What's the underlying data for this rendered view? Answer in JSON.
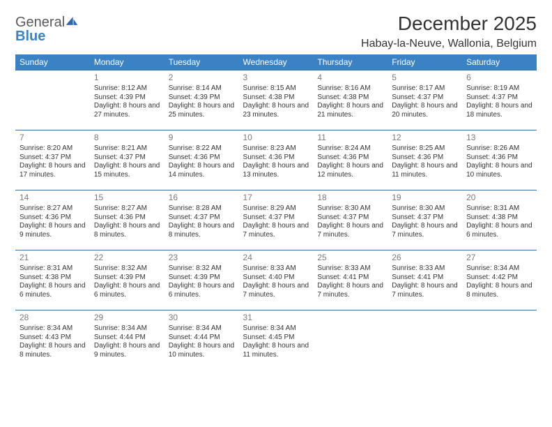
{
  "logo": {
    "text_top": "General",
    "text_bottom": "Blue",
    "icon": "sail-icon"
  },
  "title": "December 2025",
  "location": "Habay-la-Neuve, Wallonia, Belgium",
  "styling": {
    "header_bg": "#3b82c4",
    "header_fg": "#ffffff",
    "row_border": "#3b6fa0",
    "body_bg": "#ffffff",
    "text_color": "#333333",
    "daynum_color": "#7a7a7a",
    "title_fontsize_pt": 21,
    "location_fontsize_pt": 12,
    "weekday_fontsize_pt": 9,
    "daynum_fontsize_pt": 9,
    "cell_fontsize_pt": 7.5,
    "columns": 7,
    "rows": 5
  },
  "weekdays": [
    "Sunday",
    "Monday",
    "Tuesday",
    "Wednesday",
    "Thursday",
    "Friday",
    "Saturday"
  ],
  "weeks": [
    [
      null,
      {
        "n": "1",
        "sr": "Sunrise: 8:12 AM",
        "ss": "Sunset: 4:39 PM",
        "dl": "Daylight: 8 hours and 27 minutes."
      },
      {
        "n": "2",
        "sr": "Sunrise: 8:14 AM",
        "ss": "Sunset: 4:39 PM",
        "dl": "Daylight: 8 hours and 25 minutes."
      },
      {
        "n": "3",
        "sr": "Sunrise: 8:15 AM",
        "ss": "Sunset: 4:38 PM",
        "dl": "Daylight: 8 hours and 23 minutes."
      },
      {
        "n": "4",
        "sr": "Sunrise: 8:16 AM",
        "ss": "Sunset: 4:38 PM",
        "dl": "Daylight: 8 hours and 21 minutes."
      },
      {
        "n": "5",
        "sr": "Sunrise: 8:17 AM",
        "ss": "Sunset: 4:37 PM",
        "dl": "Daylight: 8 hours and 20 minutes."
      },
      {
        "n": "6",
        "sr": "Sunrise: 8:19 AM",
        "ss": "Sunset: 4:37 PM",
        "dl": "Daylight: 8 hours and 18 minutes."
      }
    ],
    [
      {
        "n": "7",
        "sr": "Sunrise: 8:20 AM",
        "ss": "Sunset: 4:37 PM",
        "dl": "Daylight: 8 hours and 17 minutes."
      },
      {
        "n": "8",
        "sr": "Sunrise: 8:21 AM",
        "ss": "Sunset: 4:37 PM",
        "dl": "Daylight: 8 hours and 15 minutes."
      },
      {
        "n": "9",
        "sr": "Sunrise: 8:22 AM",
        "ss": "Sunset: 4:36 PM",
        "dl": "Daylight: 8 hours and 14 minutes."
      },
      {
        "n": "10",
        "sr": "Sunrise: 8:23 AM",
        "ss": "Sunset: 4:36 PM",
        "dl": "Daylight: 8 hours and 13 minutes."
      },
      {
        "n": "11",
        "sr": "Sunrise: 8:24 AM",
        "ss": "Sunset: 4:36 PM",
        "dl": "Daylight: 8 hours and 12 minutes."
      },
      {
        "n": "12",
        "sr": "Sunrise: 8:25 AM",
        "ss": "Sunset: 4:36 PM",
        "dl": "Daylight: 8 hours and 11 minutes."
      },
      {
        "n": "13",
        "sr": "Sunrise: 8:26 AM",
        "ss": "Sunset: 4:36 PM",
        "dl": "Daylight: 8 hours and 10 minutes."
      }
    ],
    [
      {
        "n": "14",
        "sr": "Sunrise: 8:27 AM",
        "ss": "Sunset: 4:36 PM",
        "dl": "Daylight: 8 hours and 9 minutes."
      },
      {
        "n": "15",
        "sr": "Sunrise: 8:27 AM",
        "ss": "Sunset: 4:36 PM",
        "dl": "Daylight: 8 hours and 8 minutes."
      },
      {
        "n": "16",
        "sr": "Sunrise: 8:28 AM",
        "ss": "Sunset: 4:37 PM",
        "dl": "Daylight: 8 hours and 8 minutes."
      },
      {
        "n": "17",
        "sr": "Sunrise: 8:29 AM",
        "ss": "Sunset: 4:37 PM",
        "dl": "Daylight: 8 hours and 7 minutes."
      },
      {
        "n": "18",
        "sr": "Sunrise: 8:30 AM",
        "ss": "Sunset: 4:37 PM",
        "dl": "Daylight: 8 hours and 7 minutes."
      },
      {
        "n": "19",
        "sr": "Sunrise: 8:30 AM",
        "ss": "Sunset: 4:37 PM",
        "dl": "Daylight: 8 hours and 7 minutes."
      },
      {
        "n": "20",
        "sr": "Sunrise: 8:31 AM",
        "ss": "Sunset: 4:38 PM",
        "dl": "Daylight: 8 hours and 6 minutes."
      }
    ],
    [
      {
        "n": "21",
        "sr": "Sunrise: 8:31 AM",
        "ss": "Sunset: 4:38 PM",
        "dl": "Daylight: 8 hours and 6 minutes."
      },
      {
        "n": "22",
        "sr": "Sunrise: 8:32 AM",
        "ss": "Sunset: 4:39 PM",
        "dl": "Daylight: 8 hours and 6 minutes."
      },
      {
        "n": "23",
        "sr": "Sunrise: 8:32 AM",
        "ss": "Sunset: 4:39 PM",
        "dl": "Daylight: 8 hours and 6 minutes."
      },
      {
        "n": "24",
        "sr": "Sunrise: 8:33 AM",
        "ss": "Sunset: 4:40 PM",
        "dl": "Daylight: 8 hours and 7 minutes."
      },
      {
        "n": "25",
        "sr": "Sunrise: 8:33 AM",
        "ss": "Sunset: 4:41 PM",
        "dl": "Daylight: 8 hours and 7 minutes."
      },
      {
        "n": "26",
        "sr": "Sunrise: 8:33 AM",
        "ss": "Sunset: 4:41 PM",
        "dl": "Daylight: 8 hours and 7 minutes."
      },
      {
        "n": "27",
        "sr": "Sunrise: 8:34 AM",
        "ss": "Sunset: 4:42 PM",
        "dl": "Daylight: 8 hours and 8 minutes."
      }
    ],
    [
      {
        "n": "28",
        "sr": "Sunrise: 8:34 AM",
        "ss": "Sunset: 4:43 PM",
        "dl": "Daylight: 8 hours and 8 minutes."
      },
      {
        "n": "29",
        "sr": "Sunrise: 8:34 AM",
        "ss": "Sunset: 4:44 PM",
        "dl": "Daylight: 8 hours and 9 minutes."
      },
      {
        "n": "30",
        "sr": "Sunrise: 8:34 AM",
        "ss": "Sunset: 4:44 PM",
        "dl": "Daylight: 8 hours and 10 minutes."
      },
      {
        "n": "31",
        "sr": "Sunrise: 8:34 AM",
        "ss": "Sunset: 4:45 PM",
        "dl": "Daylight: 8 hours and 11 minutes."
      },
      null,
      null,
      null
    ]
  ]
}
